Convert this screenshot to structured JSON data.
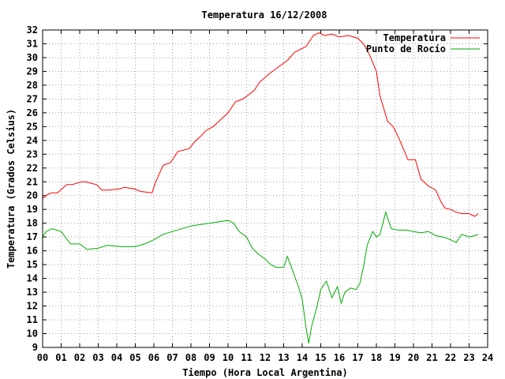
{
  "chart_data": {
    "type": "line",
    "title": "Temperatura 16/12/2008",
    "xlabel": "Tiempo (Hora Local Argentina)",
    "ylabel": "Temperatura (Grados Celsius)",
    "xlim": [
      0,
      24
    ],
    "ylim": [
      9,
      32
    ],
    "x_ticks": [
      "00",
      "01",
      "02",
      "03",
      "04",
      "05",
      "06",
      "07",
      "08",
      "09",
      "10",
      "11",
      "12",
      "13",
      "14",
      "15",
      "16",
      "17",
      "18",
      "19",
      "20",
      "21",
      "22",
      "23",
      "24"
    ],
    "y_ticks": [
      "9",
      "10",
      "11",
      "12",
      "13",
      "14",
      "15",
      "16",
      "17",
      "18",
      "19",
      "20",
      "21",
      "22",
      "23",
      "24",
      "25",
      "26",
      "27",
      "28",
      "29",
      "30",
      "31",
      "32"
    ],
    "grid": true,
    "legend_position": "top-right",
    "series": [
      {
        "name": "Temperatura",
        "color": "#ff0000",
        "x": [
          0,
          0.3,
          0.5,
          0.8,
          1.3,
          1.6,
          2.1,
          2.3,
          2.9,
          3.2,
          3.6,
          4.2,
          4.4,
          4.9,
          5.3,
          5.9,
          6.1,
          6.5,
          6.9,
          7.3,
          7.9,
          8.2,
          8.6,
          8.8,
          9.2,
          9.6,
          10.0,
          10.4,
          10.8,
          11.4,
          11.7,
          12.2,
          12.8,
          13.2,
          13.6,
          14.2,
          14.6,
          14.9,
          15.2,
          15.6,
          16.0,
          16.5,
          17.0,
          17.3,
          17.6,
          18.0,
          18.2,
          18.6,
          18.9,
          19.2,
          19.7,
          20.1,
          20.4,
          20.8,
          21.2,
          21.5,
          21.7,
          22.0,
          22.3,
          22.6,
          23.0,
          23.3,
          23.5
        ],
        "y": [
          19.8,
          20.1,
          20.2,
          20.2,
          20.8,
          20.8,
          21.0,
          21.0,
          20.8,
          20.4,
          20.4,
          20.5,
          20.6,
          20.5,
          20.3,
          20.2,
          21.0,
          22.2,
          22.4,
          23.2,
          23.4,
          23.9,
          24.4,
          24.7,
          25.0,
          25.5,
          26.0,
          26.8,
          27.0,
          27.6,
          28.2,
          28.8,
          29.4,
          29.8,
          30.4,
          30.8,
          31.6,
          31.8,
          31.6,
          31.7,
          31.5,
          31.6,
          31.4,
          31.0,
          30.3,
          29.0,
          27.2,
          25.4,
          25.0,
          24.2,
          22.6,
          22.6,
          21.2,
          20.7,
          20.4,
          19.5,
          19.1,
          19.0,
          18.8,
          18.7,
          18.7,
          18.5,
          18.7
        ]
      },
      {
        "name": "Punto de Rocío",
        "color": "#00aa00",
        "x": [
          0,
          0.2,
          0.5,
          1.0,
          1.5,
          2.0,
          2.4,
          3.0,
          3.5,
          4.2,
          5.0,
          5.5,
          6.0,
          6.5,
          7.0,
          7.5,
          8.0,
          8.5,
          9.0,
          9.5,
          10.0,
          10.3,
          10.6,
          11.0,
          11.3,
          11.6,
          12.0,
          12.3,
          12.6,
          13.0,
          13.2,
          13.5,
          13.8,
          14.0,
          14.2,
          14.35,
          14.5,
          14.8,
          15.0,
          15.3,
          15.6,
          15.9,
          16.1,
          16.3,
          16.6,
          16.9,
          17.1,
          17.3,
          17.5,
          17.8,
          18.0,
          18.2,
          18.5,
          18.8,
          19.2,
          19.6,
          20.0,
          20.4,
          20.8,
          21.2,
          21.6,
          22.0,
          22.3,
          22.6,
          23.0,
          23.3,
          23.5
        ],
        "y": [
          17.0,
          17.4,
          17.6,
          17.4,
          16.5,
          16.5,
          16.1,
          16.2,
          16.4,
          16.3,
          16.3,
          16.5,
          16.8,
          17.2,
          17.4,
          17.6,
          17.8,
          17.9,
          18.0,
          18.1,
          18.2,
          18.0,
          17.4,
          17.0,
          16.2,
          15.8,
          15.4,
          15.0,
          14.8,
          14.8,
          15.6,
          14.5,
          13.4,
          12.5,
          10.5,
          9.3,
          10.5,
          12.0,
          13.2,
          13.8,
          12.6,
          13.4,
          12.2,
          13.0,
          13.3,
          13.2,
          13.6,
          14.8,
          16.4,
          17.4,
          17.0,
          17.2,
          18.8,
          17.6,
          17.5,
          17.5,
          17.4,
          17.3,
          17.4,
          17.1,
          17.0,
          16.8,
          16.6,
          17.2,
          17.0,
          17.1,
          17.2
        ]
      }
    ]
  }
}
